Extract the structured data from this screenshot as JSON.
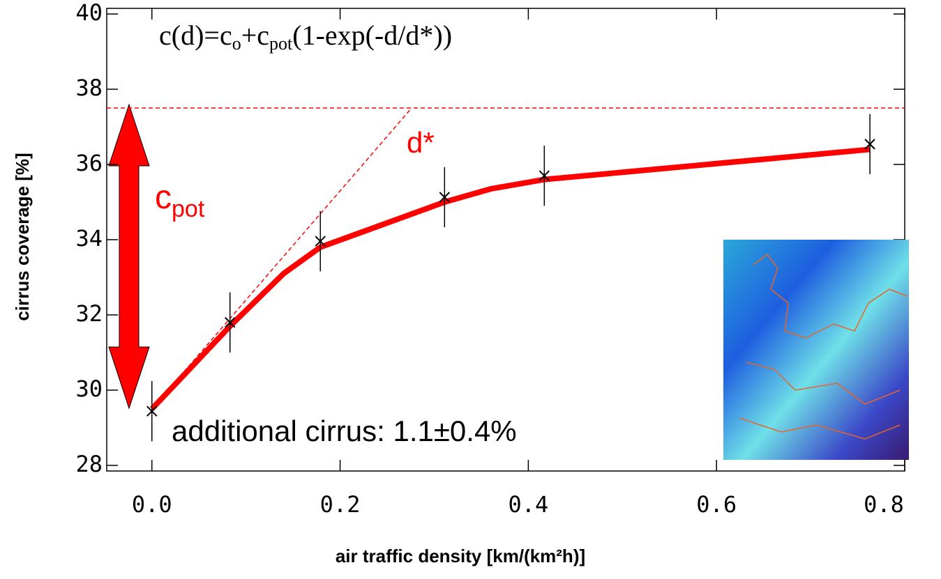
{
  "chart_data": {
    "type": "scatter",
    "ylabel": "cirrus coverage [%]",
    "xlabel": "air traffic density [km/(km²h)]",
    "formula": [
      "c(d)=c",
      "o",
      "+c",
      "pot",
      "(1-exp(-d/d*))"
    ],
    "annotations": {
      "dstar": "d*",
      "cpot": [
        "c",
        "pot"
      ],
      "additional": "additional cirrus: 1.1±0.4%"
    },
    "xlim": [
      -0.048,
      0.8
    ],
    "ylim": [
      27.85,
      40.15
    ],
    "xticks": [
      {
        "value": 0,
        "label": "0.0"
      },
      {
        "value": 0.2,
        "label": "0.2"
      },
      {
        "value": 0.4,
        "label": "0.4"
      },
      {
        "value": 0.6,
        "label": "0.6"
      },
      {
        "value": 0.8,
        "label": "0.8"
      }
    ],
    "yticks": [
      28,
      30,
      32,
      34,
      36,
      38,
      40
    ],
    "saturation": 37.5,
    "tangent": {
      "x": [
        0,
        0.276
      ],
      "values": [
        29.5,
        37.5
      ]
    },
    "series": [
      {
        "color": "#000000",
        "x": [
          0,
          0.083,
          0.179,
          0.311,
          0.417,
          0.763
        ],
        "values": [
          29.44,
          31.8,
          33.96,
          35.13,
          35.7,
          36.54
        ],
        "errors": [
          0.8,
          0.8,
          0.8,
          0.8,
          0.8,
          0.8
        ]
      },
      {
        "color": "#ff0000",
        "x": [
          0,
          0.083,
          0.14,
          0.179,
          0.311,
          0.36,
          0.417,
          0.763
        ],
        "values": [
          29.5,
          31.7,
          33.1,
          33.8,
          35.0,
          35.35,
          35.6,
          36.4
        ]
      }
    ]
  }
}
